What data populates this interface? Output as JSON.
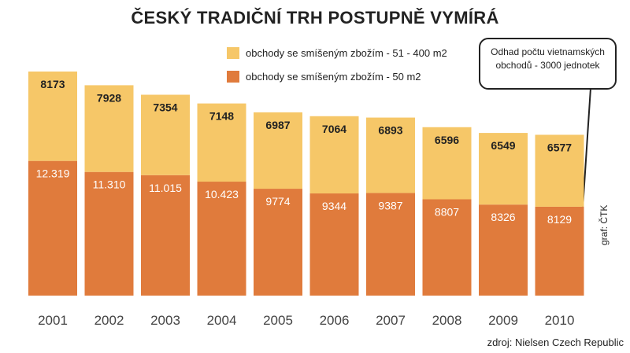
{
  "chart_data": {
    "type": "bar",
    "stacked": true,
    "title": "ČESKÝ TRADIČNÍ TRH POSTUPNĚ VYMÍRÁ",
    "categories": [
      "2001",
      "2002",
      "2003",
      "2004",
      "2005",
      "2006",
      "2007",
      "2008",
      "2009",
      "2010"
    ],
    "series": [
      {
        "name": "obchody se smíšeným zbožím - 50 m2",
        "color": "#e07b3c",
        "values": [
          12319,
          11310,
          11015,
          10423,
          9774,
          9344,
          9387,
          8807,
          8326,
          8129
        ],
        "labels": [
          "12.319",
          "11.310",
          "11.015",
          "10.423",
          "9774",
          "9344",
          "9387",
          "8807",
          "8326",
          "8129"
        ]
      },
      {
        "name": "obchody se smíšeným zbožím - 51 - 400 m2",
        "color": "#f6c768",
        "values": [
          8173,
          7928,
          7354,
          7148,
          6987,
          7064,
          6893,
          6596,
          6549,
          6577
        ],
        "labels": [
          "8173",
          "7928",
          "7354",
          "7148",
          "6987",
          "7064",
          "6893",
          "6596",
          "6549",
          "6577"
        ]
      }
    ],
    "legend_order": [
      1,
      0
    ],
    "legend_position": "top",
    "ylim": [
      0,
      22000
    ],
    "grid": false,
    "annotation": "Odhad počtu vietnamských obchodů - 3000 jednotek",
    "source": "zdroj: Nielsen Czech Republic",
    "credit": "graf: ČTK"
  }
}
